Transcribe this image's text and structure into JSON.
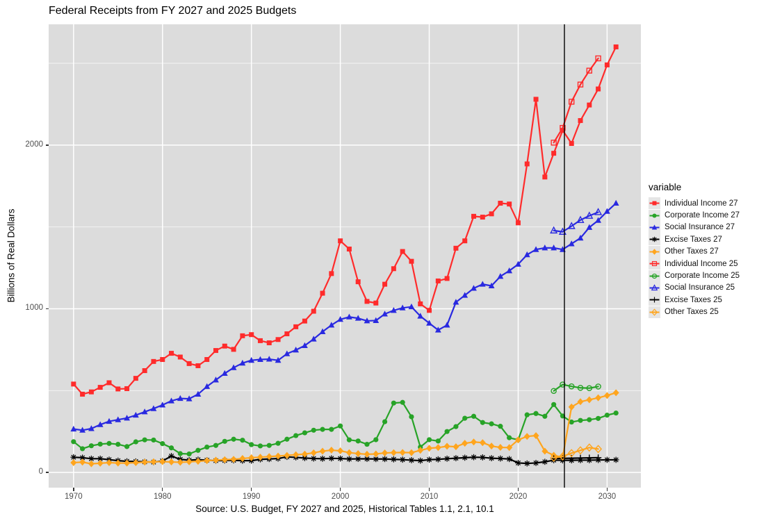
{
  "title": "Federal Receipts from FY 2027 and 2025 Budgets",
  "axes": {
    "y_label": "Billions of Real Dollars",
    "x_label": "Source: U.S. Budget, FY 2027 and 2025, Historical Tables 1.1, 2.1, 10.1",
    "x_ticks": [
      1970,
      1980,
      1990,
      2000,
      2010,
      2020,
      2030
    ],
    "y_ticks": [
      0,
      1000,
      2000
    ],
    "y_minor_ticks": [
      500,
      1500,
      2500
    ],
    "x_domain": [
      1967.2,
      2033.8
    ],
    "y_domain": [
      -93,
      2738
    ],
    "grid": "on"
  },
  "legend": {
    "title": "variable",
    "position": "right"
  },
  "style": {
    "panel_bg": "#dcdcdc",
    "grid_color": "#ffffff",
    "legend_key_bg": "#e5e5e5",
    "tick_label_color": "#4d4d4d",
    "vline_color": "#000000"
  },
  "chart_data": {
    "type": "line",
    "title": "Federal Receipts from FY 2027 and 2025 Budgets",
    "xlabel": "Source: U.S. Budget, FY 2027 and 2025, Historical Tables 1.1, 2.1, 10.1",
    "ylabel": "Billions of Real Dollars",
    "legend_title": "variable",
    "legend_position": "right",
    "vline_x": 2025.2,
    "years_hist": [
      1970,
      1971,
      1972,
      1973,
      1974,
      1975,
      1976,
      1977,
      1978,
      1979,
      1980,
      1981,
      1982,
      1983,
      1984,
      1985,
      1986,
      1987,
      1988,
      1989,
      1990,
      1991,
      1992,
      1993,
      1994,
      1995,
      1996,
      1997,
      1998,
      1999,
      2000,
      2001,
      2002,
      2003,
      2004,
      2005,
      2006,
      2007,
      2008,
      2009,
      2010,
      2011,
      2012,
      2013,
      2014,
      2015,
      2016,
      2017,
      2018,
      2019,
      2020,
      2021,
      2022,
      2023,
      2024,
      2025,
      2026,
      2027,
      2028,
      2029,
      2030,
      2031
    ],
    "years_proj": [
      2024,
      2025,
      2026,
      2027,
      2028,
      2029
    ],
    "series": [
      {
        "name": "Individual Income 27",
        "color": "#ff2b2b",
        "marker": "square",
        "variant": "filled",
        "x_key": "years_hist",
        "values": [
          540,
          478,
          492,
          520,
          548,
          510,
          512,
          575,
          622,
          678,
          690,
          728,
          705,
          665,
          652,
          690,
          745,
          772,
          752,
          835,
          842,
          805,
          792,
          812,
          847,
          890,
          925,
          985,
          1095,
          1215,
          1415,
          1365,
          1165,
          1045,
          1035,
          1150,
          1245,
          1350,
          1290,
          1030,
          990,
          1170,
          1185,
          1370,
          1415,
          1565,
          1560,
          1580,
          1645,
          1640,
          1525,
          1885,
          2280,
          1805,
          1950,
          2090,
          2010,
          2150,
          2245,
          2343,
          2490,
          2600
        ]
      },
      {
        "name": "Corporate Income 27",
        "color": "#27a327",
        "marker": "circle",
        "variant": "filled",
        "x_key": "years_hist",
        "values": [
          188,
          145,
          163,
          173,
          177,
          172,
          158,
          187,
          199,
          198,
          176,
          150,
          115,
          113,
          135,
          155,
          165,
          190,
          203,
          197,
          170,
          162,
          165,
          178,
          203,
          225,
          242,
          258,
          263,
          263,
          284,
          199,
          192,
          172,
          200,
          310,
          424,
          428,
          340,
          155,
          200,
          192,
          250,
          280,
          331,
          343,
          305,
          297,
          282,
          212,
          199,
          352,
          360,
          343,
          415,
          345,
          308,
          318,
          322,
          330,
          350,
          363
        ]
      },
      {
        "name": "Social Insurance 27",
        "color": "#2929e0",
        "marker": "triangle",
        "variant": "filled",
        "x_key": "years_hist",
        "values": [
          265,
          258,
          268,
          292,
          312,
          322,
          332,
          350,
          370,
          390,
          412,
          437,
          452,
          450,
          478,
          525,
          565,
          605,
          640,
          668,
          685,
          690,
          692,
          685,
          725,
          748,
          775,
          815,
          860,
          900,
          935,
          950,
          942,
          926,
          928,
          968,
          990,
          1005,
          1012,
          955,
          912,
          870,
          900,
          1040,
          1082,
          1125,
          1150,
          1140,
          1198,
          1232,
          1272,
          1330,
          1362,
          1372,
          1372,
          1362,
          1397,
          1432,
          1497,
          1540,
          1595,
          1645
        ]
      },
      {
        "name": "Excise Taxes 27",
        "color": "#000000",
        "marker": "asterisk",
        "variant": "stroke",
        "x_key": "years_hist",
        "values": [
          93,
          90,
          84,
          84,
          78,
          72,
          68,
          67,
          65,
          63,
          70,
          100,
          80,
          75,
          78,
          75,
          72,
          73,
          74,
          72,
          72,
          80,
          82,
          85,
          95,
          92,
          88,
          85,
          84,
          86,
          85,
          82,
          83,
          83,
          82,
          82,
          80,
          78,
          75,
          72,
          78,
          80,
          84,
          87,
          90,
          93,
          92,
          87,
          85,
          82,
          58,
          55,
          58,
          65,
          75,
          74,
          74,
          75,
          75,
          76,
          77,
          77
        ]
      },
      {
        "name": "Other Taxes 27",
        "color": "#ffa51e",
        "marker": "diamond",
        "variant": "filled",
        "x_key": "years_hist",
        "values": [
          60,
          63,
          53,
          56,
          60,
          57,
          57,
          60,
          63,
          65,
          66,
          64,
          62,
          65,
          68,
          72,
          75,
          78,
          80,
          85,
          90,
          93,
          97,
          100,
          104,
          108,
          112,
          120,
          130,
          136,
          132,
          121,
          115,
          111,
          113,
          119,
          121,
          122,
          121,
          135,
          148,
          152,
          160,
          157,
          178,
          186,
          182,
          161,
          153,
          152,
          199,
          220,
          225,
          130,
          105,
          92,
          400,
          432,
          444,
          456,
          470,
          487
        ]
      },
      {
        "name": "Individual Income 25",
        "color": "#ff2b2b",
        "marker": "square",
        "variant": "open",
        "x_key": "years_proj",
        "values": [
          2015,
          2105,
          2265,
          2370,
          2455,
          2530
        ]
      },
      {
        "name": "Corporate Income 25",
        "color": "#27a327",
        "marker": "circle",
        "variant": "open",
        "x_key": "years_proj",
        "values": [
          498,
          537,
          526,
          517,
          515,
          525
        ]
      },
      {
        "name": "Social Insurance 25",
        "color": "#2929e0",
        "marker": "triangle",
        "variant": "open",
        "x_key": "years_proj",
        "values": [
          1478,
          1470,
          1505,
          1542,
          1568,
          1590
        ]
      },
      {
        "name": "Excise Taxes 25",
        "color": "#000000",
        "marker": "plus",
        "variant": "stroke",
        "x_key": "years_proj",
        "values": [
          85,
          86,
          87,
          88,
          89,
          90
        ]
      },
      {
        "name": "Other Taxes 25",
        "color": "#ffa51e",
        "marker": "diamond",
        "variant": "open",
        "x_key": "years_proj",
        "values": [
          90,
          98,
          118,
          135,
          152,
          143
        ]
      }
    ]
  }
}
